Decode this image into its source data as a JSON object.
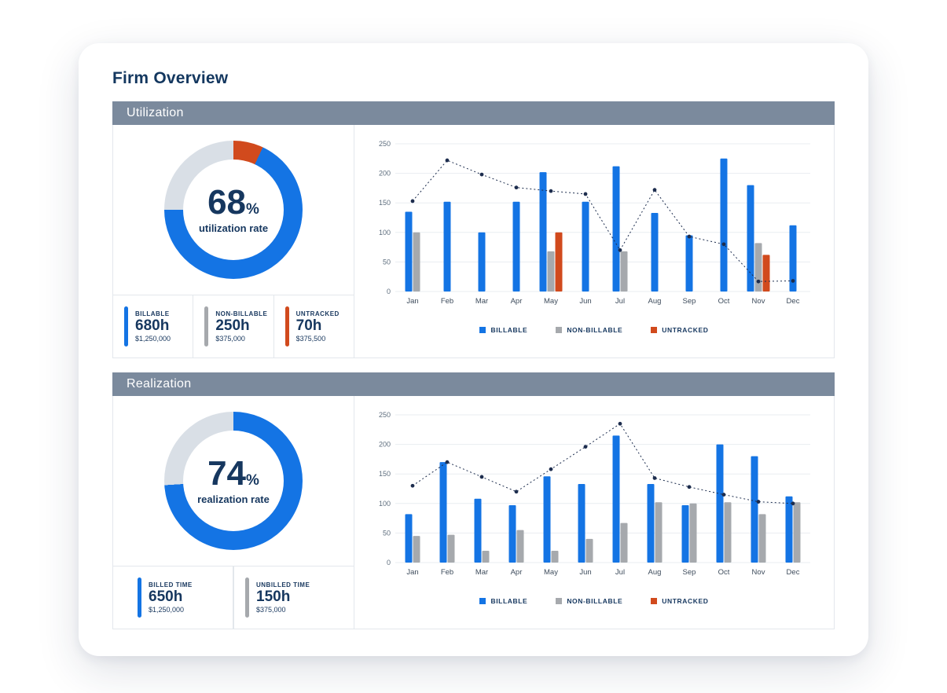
{
  "page": {
    "title": "Firm Overview"
  },
  "colors": {
    "billable": "#1474e4",
    "non_billable": "#a6a9ad",
    "untracked": "#d14a1d",
    "track": "#d9dfe6",
    "navy": "#1d2d4e",
    "header_bg": "#7b8a9d",
    "text_navy": "#16375f"
  },
  "sections": [
    {
      "header": "Utilization",
      "donut": {
        "value": "68",
        "unit": "%",
        "label": "utilization rate",
        "segments": [
          {
            "label": "untracked",
            "pct": 7,
            "color": "untracked"
          },
          {
            "label": "billable",
            "pct": 68,
            "color": "billable"
          },
          {
            "label": "non-billable",
            "pct": 25,
            "color": "track"
          }
        ]
      },
      "stats": [
        {
          "label": "BILLABLE",
          "hours": "680h",
          "amount": "$1,250,000",
          "color": "billable"
        },
        {
          "label": "NON-BILLABLE",
          "hours": "250h",
          "amount": "$375,000",
          "color": "non_billable"
        },
        {
          "label": "UNTRACKED",
          "hours": "70h",
          "amount": "$375,500",
          "color": "untracked"
        }
      ]
    },
    {
      "header": "Realization",
      "donut": {
        "value": "74",
        "unit": "%",
        "label": "realization rate",
        "segments": [
          {
            "label": "billed",
            "pct": 74,
            "color": "billable"
          },
          {
            "label": "unbilled",
            "pct": 26,
            "color": "track"
          }
        ]
      },
      "stats": [
        {
          "label": "BILLED TIME",
          "hours": "650h",
          "amount": "$1,250,000",
          "color": "billable"
        },
        {
          "label": "UNBILLED TIME",
          "hours": "150h",
          "amount": "$375,000",
          "color": "non_billable"
        }
      ]
    }
  ],
  "chart_data": [
    {
      "id": "utilization-monthly",
      "type": "bar",
      "categories": [
        "Jan",
        "Feb",
        "Mar",
        "Apr",
        "May",
        "Jun",
        "Jul",
        "Aug",
        "Sep",
        "Oct",
        "Nov",
        "Dec"
      ],
      "series": [
        {
          "name": "BILLABLE",
          "color": "billable",
          "values": [
            135,
            152,
            100,
            152,
            202,
            152,
            212,
            133,
            95,
            225,
            180,
            112
          ]
        },
        {
          "name": "NON-BILLABLE",
          "color": "non_billable",
          "values": [
            100,
            0,
            0,
            0,
            68,
            0,
            68,
            0,
            0,
            0,
            82,
            0
          ]
        },
        {
          "name": "UNTRACKED",
          "color": "untracked",
          "values": [
            0,
            0,
            0,
            0,
            100,
            0,
            0,
            0,
            0,
            0,
            62,
            0
          ]
        }
      ],
      "line": {
        "name": "trend",
        "color": "navy",
        "style": "dotted",
        "values": [
          153,
          222,
          198,
          176,
          170,
          165,
          70,
          172,
          93,
          80,
          17,
          18
        ]
      },
      "ylim": [
        0,
        250
      ],
      "yticks": [
        0,
        50,
        100,
        150,
        200,
        250
      ],
      "grid": true,
      "legend": [
        "BILLABLE",
        "NON-BILLABLE",
        "UNTRACKED"
      ],
      "legend_position": "bottom"
    },
    {
      "id": "realization-monthly",
      "type": "bar",
      "categories": [
        "Jan",
        "Feb",
        "Mar",
        "Apr",
        "May",
        "Jun",
        "Jul",
        "Aug",
        "Sep",
        "Oct",
        "Nov",
        "Dec"
      ],
      "series": [
        {
          "name": "BILLABLE",
          "color": "billable",
          "values": [
            82,
            170,
            108,
            97,
            146,
            133,
            215,
            133,
            97,
            200,
            180,
            112
          ]
        },
        {
          "name": "NON-BILLABLE",
          "color": "non_billable",
          "values": [
            45,
            47,
            20,
            55,
            20,
            40,
            67,
            102,
            100,
            102,
            82,
            102
          ]
        },
        {
          "name": "UNTRACKED",
          "color": "untracked",
          "values": [
            0,
            0,
            0,
            0,
            0,
            0,
            0,
            0,
            0,
            0,
            0,
            0
          ]
        }
      ],
      "line": {
        "name": "trend",
        "color": "navy",
        "style": "dotted",
        "values": [
          130,
          170,
          145,
          120,
          158,
          196,
          235,
          143,
          128,
          115,
          103,
          100
        ]
      },
      "ylim": [
        0,
        250
      ],
      "yticks": [
        0,
        50,
        100,
        150,
        200,
        250
      ],
      "grid": true,
      "legend": [
        "BILLABLE",
        "NON-BILLABLE",
        "UNTRACKED"
      ],
      "legend_position": "bottom"
    }
  ]
}
